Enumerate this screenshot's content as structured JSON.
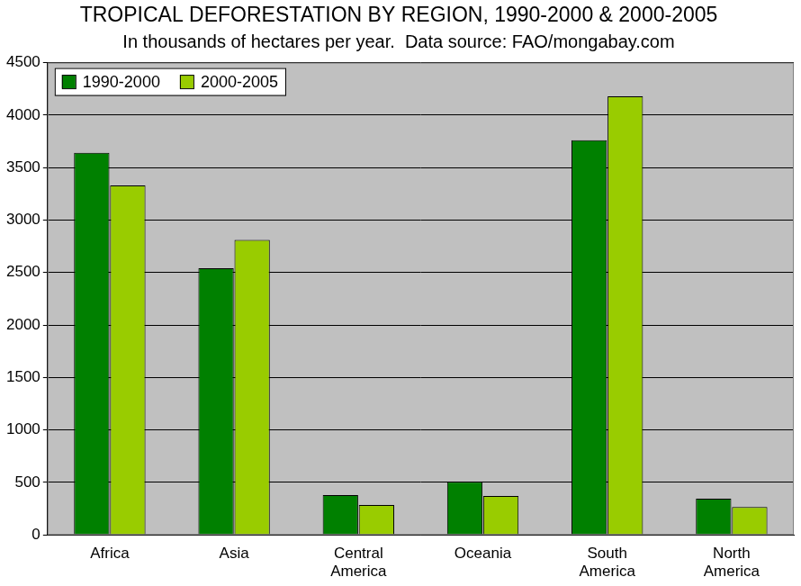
{
  "chart_data": {
    "type": "bar",
    "title": "TROPICAL DEFORESTATION BY REGION, 1990-2000 & 2000-2005",
    "subtitle": "In thousands of hectares per year.  Data source: FAO/mongabay.com",
    "categories": [
      "Africa",
      "Asia",
      "Central America",
      "Oceania",
      "South America",
      "North America"
    ],
    "series": [
      {
        "name": "1990-2000",
        "color": "#008000",
        "values": [
          3640,
          2540,
          380,
          505,
          3760,
          345
        ]
      },
      {
        "name": "2000-2005",
        "color": "#99cc00",
        "values": [
          3330,
          2810,
          285,
          370,
          4180,
          265
        ]
      }
    ],
    "ylim": [
      0,
      4500
    ],
    "yticks": [
      0,
      500,
      1000,
      1500,
      2000,
      2500,
      3000,
      3500,
      4000,
      4500
    ],
    "grid": true,
    "legend": "top-left"
  }
}
